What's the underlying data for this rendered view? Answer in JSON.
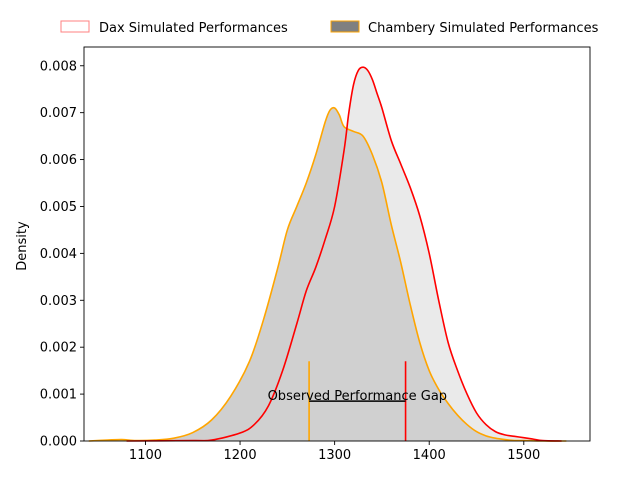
{
  "chart_data": {
    "type": "area",
    "title": "",
    "xlabel": "",
    "ylabel": "Density",
    "xlim": [
      1035,
      1570
    ],
    "ylim": [
      0,
      0.0084
    ],
    "xticks": [
      1100,
      1200,
      1300,
      1400,
      1500
    ],
    "xtick_labels": [
      "1100",
      "1200",
      "1300",
      "1400",
      "1500"
    ],
    "yticks": [
      0.0,
      0.001,
      0.002,
      0.003,
      0.004,
      0.005,
      0.006,
      0.007,
      0.008
    ],
    "ytick_labels": [
      "0.000",
      "0.001",
      "0.002",
      "0.003",
      "0.004",
      "0.005",
      "0.006",
      "0.007",
      "0.008"
    ],
    "grid": false,
    "legend_placement": "top (above plot)",
    "series": [
      {
        "name": "Dax Simulated Performances",
        "color": "#ff0000",
        "fill": false,
        "x": [
          1080,
          1150,
          1170,
          1200,
          1215,
          1230,
          1245,
          1260,
          1270,
          1280,
          1290,
          1300,
          1310,
          1315,
          1320,
          1325,
          1330,
          1335,
          1340,
          1345,
          1350,
          1360,
          1370,
          1380,
          1390,
          1400,
          1410,
          1420,
          1430,
          1440,
          1450,
          1460,
          1470,
          1480,
          1490,
          1500,
          1510,
          1520,
          1540
        ],
        "y": [
          0.0,
          1e-05,
          2e-05,
          0.00017,
          0.00035,
          0.00075,
          0.0015,
          0.0025,
          0.0032,
          0.0037,
          0.0043,
          0.005,
          0.0062,
          0.007,
          0.0076,
          0.0079,
          0.00797,
          0.0079,
          0.0077,
          0.0074,
          0.0071,
          0.0064,
          0.0059,
          0.0054,
          0.0048,
          0.004,
          0.003,
          0.0021,
          0.0015,
          0.001,
          0.0006,
          0.00035,
          0.0002,
          0.00013,
          0.0001,
          7e-05,
          4e-05,
          1e-05,
          0.0
        ]
      },
      {
        "name": "Chambery Simulated Performances",
        "color": "#ffa500",
        "fill": true,
        "fill_color": "#808080",
        "x": [
          1040,
          1060,
          1075,
          1090,
          1110,
          1130,
          1150,
          1170,
          1190,
          1210,
          1225,
          1240,
          1250,
          1260,
          1270,
          1280,
          1290,
          1295,
          1300,
          1305,
          1310,
          1320,
          1330,
          1340,
          1350,
          1360,
          1370,
          1380,
          1390,
          1400,
          1410,
          1420,
          1430,
          1440,
          1450,
          1460,
          1470,
          1480,
          1490,
          1500,
          1520,
          1545
        ],
        "y": [
          0.0,
          2e-05,
          3e-05,
          1e-05,
          2e-05,
          6e-05,
          0.00018,
          0.00045,
          0.00095,
          0.0017,
          0.0026,
          0.0037,
          0.0045,
          0.005,
          0.0055,
          0.0061,
          0.0068,
          0.00705,
          0.0071,
          0.00695,
          0.0067,
          0.0066,
          0.0065,
          0.0061,
          0.0055,
          0.0046,
          0.0038,
          0.0029,
          0.0021,
          0.0015,
          0.0011,
          0.0008,
          0.00055,
          0.00035,
          0.0002,
          0.00011,
          6e-05,
          3e-05,
          1e-05,
          1e-05,
          0.0,
          0.0
        ]
      }
    ],
    "annotations": {
      "gap_text": "Observed Performance Gap",
      "observed_chambery": 1273,
      "observed_dax": 1375,
      "marker_top": 0.0017,
      "gap_line_y": 0.00085
    }
  }
}
